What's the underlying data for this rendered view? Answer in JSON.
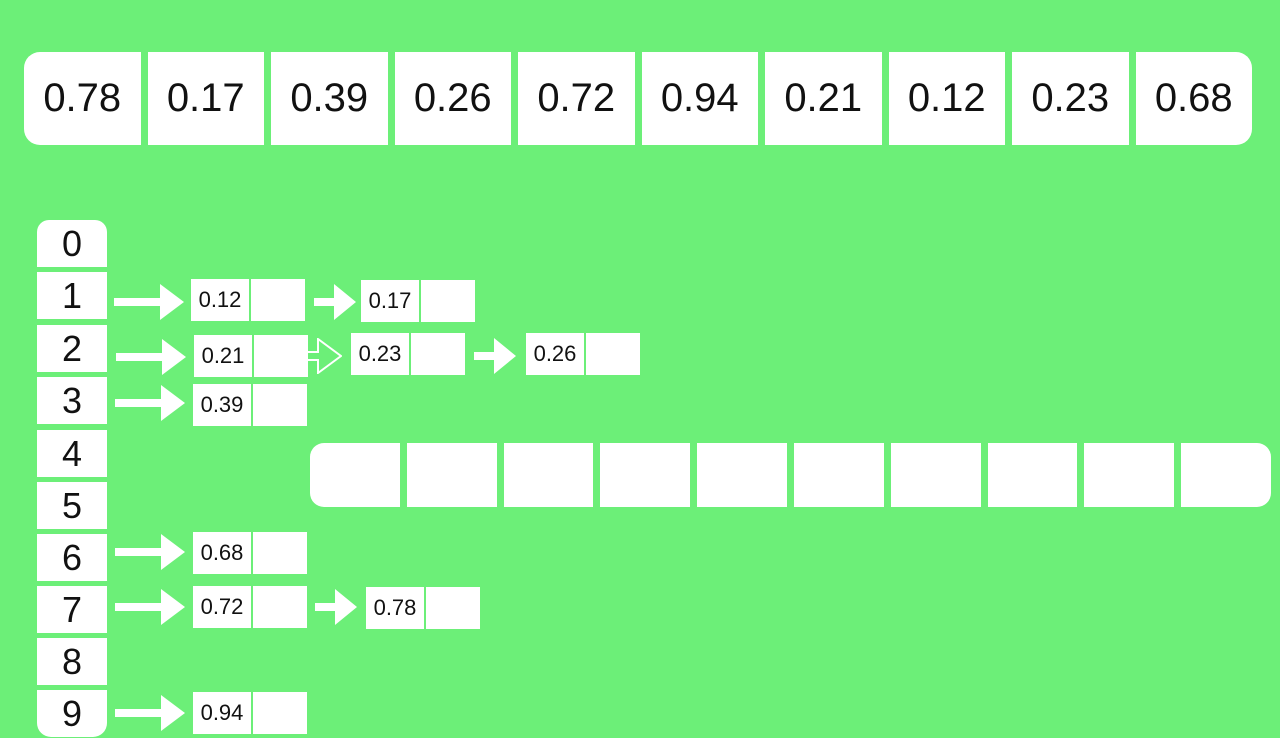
{
  "input_array": [
    "0.78",
    "0.17",
    "0.39",
    "0.26",
    "0.72",
    "0.94",
    "0.21",
    "0.12",
    "0.23",
    "0.68"
  ],
  "buckets": [
    {
      "index": "0",
      "items": []
    },
    {
      "index": "1",
      "items": [
        "0.12",
        "0.17"
      ]
    },
    {
      "index": "2",
      "items": [
        "0.21",
        "0.23",
        "0.26"
      ]
    },
    {
      "index": "3",
      "items": [
        "0.39"
      ]
    },
    {
      "index": "4",
      "items": []
    },
    {
      "index": "5",
      "items": []
    },
    {
      "index": "6",
      "items": [
        "0.68"
      ]
    },
    {
      "index": "7",
      "items": [
        "0.72",
        "0.78"
      ]
    },
    {
      "index": "8",
      "items": []
    },
    {
      "index": "9",
      "items": [
        "0.94"
      ]
    }
  ],
  "output_array": [
    "",
    "",
    "",
    "",
    "",
    "",
    "",
    "",
    "",
    ""
  ],
  "colors": {
    "background": "#6cef78",
    "cell": "#ffffff",
    "text": "#111111"
  }
}
